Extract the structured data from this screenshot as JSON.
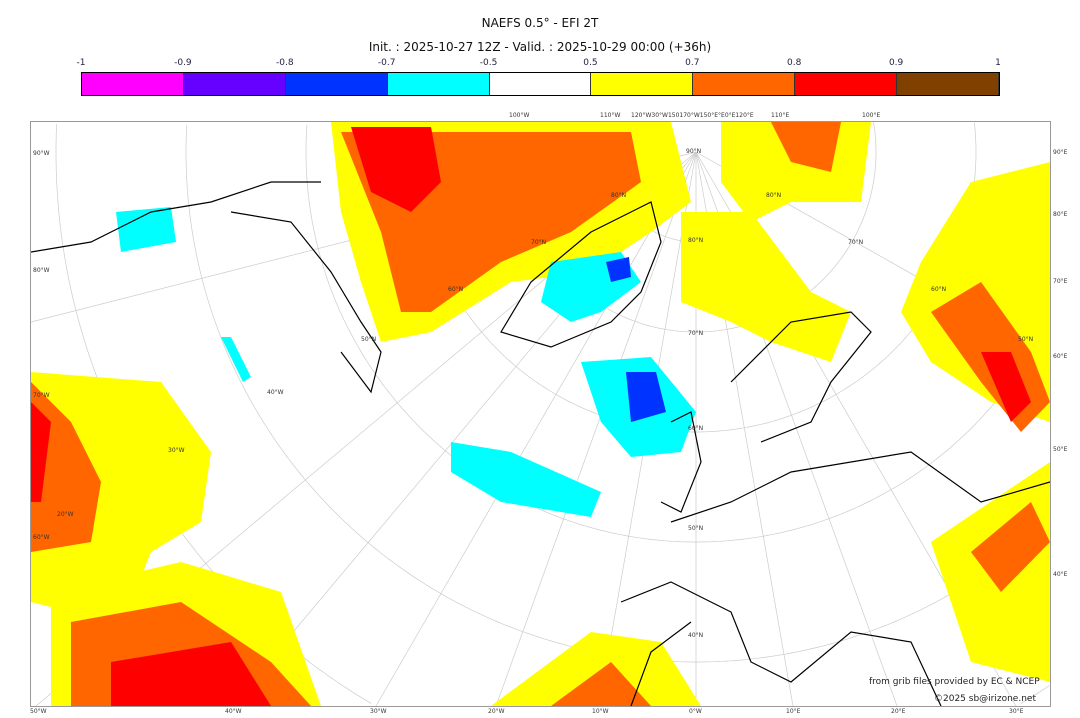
{
  "title": "NAEFS 0.5° - EFI 2T",
  "subtitle": "Init. : 2025-10-27 12Z - Valid. : 2025-10-29 00:00 (+36h)",
  "colorbar": {
    "ticks": [
      "-1",
      "-0.9",
      "-0.8",
      "-0.7",
      "-0.5",
      "0.5",
      "0.7",
      "0.8",
      "0.9",
      "1"
    ],
    "colors": [
      "#ff00ff",
      "#6600ff",
      "#0033ff",
      "#00ffff",
      "#ffffff",
      "#ffff00",
      "#ff6600",
      "#ff0000",
      "#804000"
    ]
  },
  "map": {
    "top_labels": [
      "100°W",
      "110°W",
      "120°W30°W150170°W150°E°E0°E120°E",
      "110°E",
      "100°E"
    ],
    "bottom_labels": [
      "50°W",
      "40°W",
      "30°W",
      "20°W",
      "10°W",
      "0°W",
      "10°E",
      "20°E",
      "30°E"
    ],
    "left_labels": [
      "90°W",
      "80°W",
      "70°W",
      "60°W"
    ],
    "right_labels": [
      "90°E",
      "80°E",
      "70°E",
      "60°E",
      "50°E",
      "40°E"
    ],
    "inner_labels": [
      "90°N",
      "80°N",
      "80°N",
      "80°N",
      "70°N",
      "70°N",
      "70°N",
      "60°N",
      "60°N",
      "60°N",
      "50°N",
      "50°N",
      "50°N",
      "40°N",
      "40°W",
      "30°W",
      "20°W"
    ]
  },
  "credits": [
    "from grib files provided by EC & NCEP",
    "©2025 sb@irizone.net"
  ]
}
